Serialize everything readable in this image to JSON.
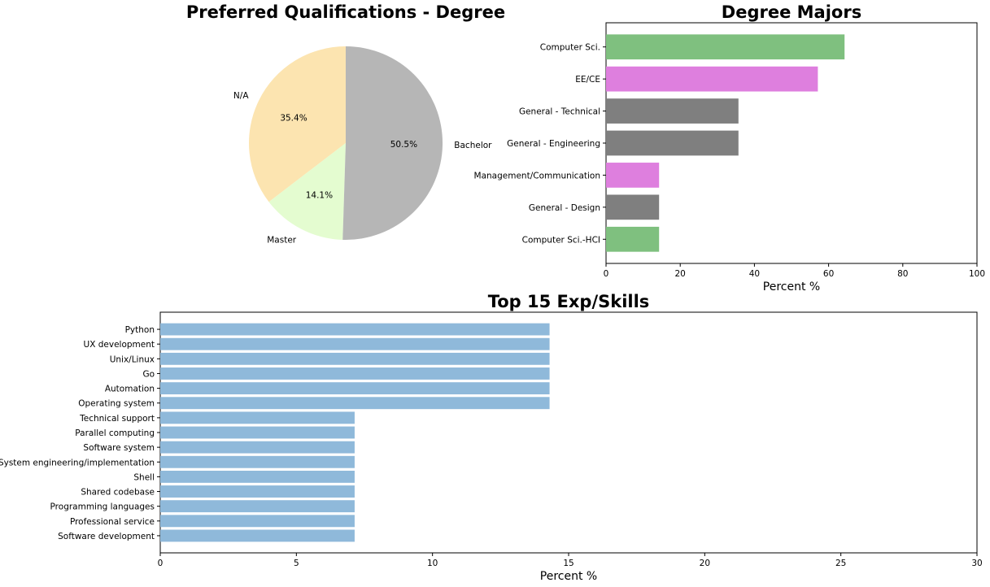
{
  "chart_data": [
    {
      "type": "pie",
      "title": "Preferred Qualifications - Degree",
      "slices": [
        {
          "label": "N/A",
          "value": 35.4,
          "pct_label": "35.4%",
          "color": "#fce4b0"
        },
        {
          "label": "Master",
          "value": 14.1,
          "pct_label": "14.1%",
          "color": "#e4fcd0"
        },
        {
          "label": "Bachelor",
          "value": 50.5,
          "pct_label": "50.5%",
          "color": "#b6b6b6"
        }
      ]
    },
    {
      "type": "bar",
      "orientation": "horizontal",
      "title": "Degree Majors",
      "xlabel": "Percent %",
      "ylabel": "",
      "xlim": [
        0,
        100
      ],
      "xticks": [
        "0",
        "20",
        "40",
        "60",
        "80",
        "100"
      ],
      "categories": [
        "Computer Sci.",
        "EE/CE",
        "General - Technical",
        "General - Engineering",
        "Management/Communication",
        "General - Design",
        "Computer Sci.-HCI"
      ],
      "values": [
        64.3,
        57.1,
        35.7,
        35.7,
        14.3,
        14.3,
        14.3
      ],
      "colors": [
        "#7fc07f",
        "#de7fde",
        "#7f7f7f",
        "#7f7f7f",
        "#de7fde",
        "#7f7f7f",
        "#7fc07f"
      ]
    },
    {
      "type": "bar",
      "orientation": "horizontal",
      "title": "Top 15 Exp/Skills",
      "xlabel": "Percent %",
      "ylabel": "",
      "xlim": [
        0,
        30
      ],
      "xticks": [
        "0",
        "5",
        "10",
        "15",
        "20",
        "25",
        "30"
      ],
      "categories": [
        "Python",
        "UX development",
        "Unix/Linux",
        "Go",
        "Automation",
        "Operating system",
        "Technical support",
        "Parallel computing",
        "Software system",
        "System engineering/implementation",
        "Shell",
        "Shared codebase",
        "Programming languages",
        "Professional service",
        "Software development"
      ],
      "values": [
        14.3,
        14.3,
        14.3,
        14.3,
        14.3,
        14.3,
        7.14,
        7.14,
        7.14,
        7.14,
        7.14,
        7.14,
        7.14,
        7.14,
        7.14
      ],
      "color": "#8fb9da"
    }
  ]
}
